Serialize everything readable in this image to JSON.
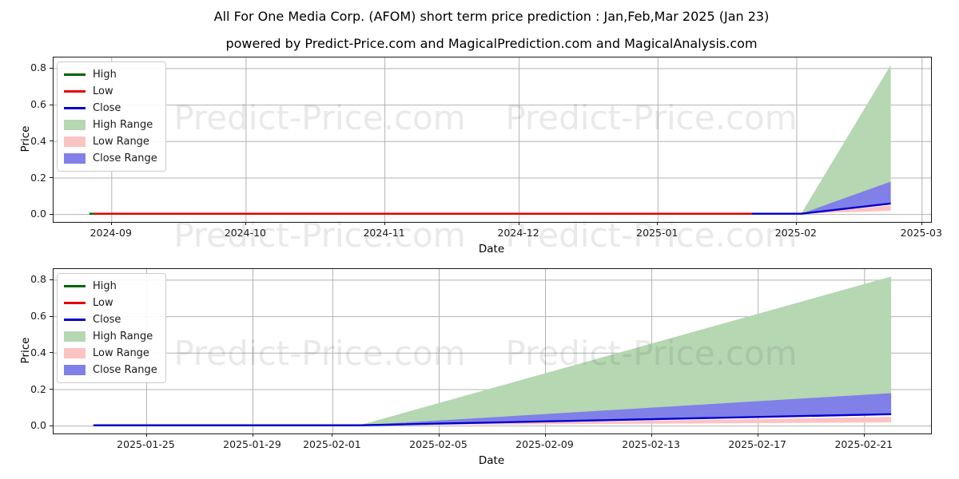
{
  "title": "All For One Media Corp. (AFOM) short term price prediction : Jan,Feb,Mar 2025 (Jan 23)",
  "subtitle": "powered by Predict-Price.com and MagicalPrediction.com and MagicalAnalysis.com",
  "watermark": {
    "text": "Predict-Price.com"
  },
  "colors": {
    "high_line": "#006400",
    "low_line": "#e60000",
    "close_line": "#0000cd",
    "high_fill": "#b5d7b2",
    "low_fill": "#fcc3c3",
    "close_fill": "#8080e8",
    "grid": "#b3b3b3",
    "spine": "#1a1a1a"
  },
  "charts": [
    {
      "ylabel": "Price",
      "xlabel": "Date",
      "yticks": [
        {
          "v": 0.0,
          "label": "0.0"
        },
        {
          "v": 0.2,
          "label": "0.2"
        },
        {
          "v": 0.4,
          "label": "0.4"
        },
        {
          "v": 0.6,
          "label": "0.6"
        },
        {
          "v": 0.8,
          "label": "0.8"
        }
      ],
      "xticks": [
        {
          "date": "2024-09-01",
          "label": "2024-09"
        },
        {
          "date": "2024-10-01",
          "label": "2024-10"
        },
        {
          "date": "2024-11-01",
          "label": "2024-11"
        },
        {
          "date": "2024-12-01",
          "label": "2024-12"
        },
        {
          "date": "2025-01-01",
          "label": "2025-01"
        },
        {
          "date": "2025-02-01",
          "label": "2025-02"
        },
        {
          "date": "2025-03-01",
          "label": "2025-03"
        }
      ],
      "legend": [
        {
          "swatch": "line",
          "color": "high_line",
          "label": "High"
        },
        {
          "swatch": "line",
          "color": "low_line",
          "label": "Low"
        },
        {
          "swatch": "line",
          "color": "close_line",
          "label": "Close"
        },
        {
          "swatch": "patch",
          "color": "high_fill",
          "label": "High Range"
        },
        {
          "swatch": "patch",
          "color": "low_fill",
          "label": "Low Range"
        },
        {
          "swatch": "patch",
          "color": "close_fill",
          "label": "Close Range"
        }
      ]
    },
    {
      "ylabel": "Price",
      "xlabel": "Date",
      "yticks": [
        {
          "v": 0.0,
          "label": "0.0"
        },
        {
          "v": 0.2,
          "label": "0.2"
        },
        {
          "v": 0.4,
          "label": "0.4"
        },
        {
          "v": 0.6,
          "label": "0.6"
        },
        {
          "v": 0.8,
          "label": "0.8"
        }
      ],
      "xticks": [
        {
          "date": "2025-01-25",
          "label": "2025-01-25"
        },
        {
          "date": "2025-01-29",
          "label": "2025-01-29"
        },
        {
          "date": "2025-02-01",
          "label": "2025-02-01"
        },
        {
          "date": "2025-02-05",
          "label": "2025-02-05"
        },
        {
          "date": "2025-02-09",
          "label": "2025-02-09"
        },
        {
          "date": "2025-02-13",
          "label": "2025-02-13"
        },
        {
          "date": "2025-02-17",
          "label": "2025-02-17"
        },
        {
          "date": "2025-02-21",
          "label": "2025-02-21"
        }
      ],
      "legend": [
        {
          "swatch": "line",
          "color": "high_line",
          "label": "High"
        },
        {
          "swatch": "line",
          "color": "low_line",
          "label": "Low"
        },
        {
          "swatch": "line",
          "color": "close_line",
          "label": "Close"
        },
        {
          "swatch": "patch",
          "color": "high_fill",
          "label": "High Range"
        },
        {
          "swatch": "patch",
          "color": "low_fill",
          "label": "Low Range"
        },
        {
          "swatch": "patch",
          "color": "close_fill",
          "label": "Close Range"
        }
      ]
    }
  ],
  "chart_data": [
    {
      "type": "line",
      "title": "AFOM price history and short-term prediction (monthly scale)",
      "xlabel": "Date",
      "ylabel": "Price",
      "xlim": [
        "2024-08-19",
        "2025-03-03"
      ],
      "ylim": [
        -0.041,
        0.861
      ],
      "grid": true,
      "legend_position": "upper left",
      "series": [
        {
          "name": "High",
          "kind": "line",
          "color": "high_line",
          "points": [
            [
              "2024-08-27",
              0.004
            ],
            [
              "2025-01-22",
              0.004
            ]
          ]
        },
        {
          "name": "Low",
          "kind": "line",
          "color": "low_line",
          "points": [
            [
              "2024-08-28",
              0.004
            ],
            [
              "2025-01-22",
              0.004
            ]
          ]
        },
        {
          "name": "Close",
          "kind": "line",
          "color": "close_line",
          "points": [
            [
              "2025-01-22",
              0.004
            ],
            [
              "2025-02-02",
              0.004
            ],
            [
              "2025-02-22",
              0.06
            ]
          ]
        },
        {
          "name": "High Range",
          "kind": "band",
          "color": "high_fill",
          "upper": [
            [
              "2025-02-02",
              0.004
            ],
            [
              "2025-02-22",
              0.82
            ]
          ],
          "lower": [
            [
              "2025-02-02",
              0.004
            ],
            [
              "2025-02-22",
              0.06
            ]
          ]
        },
        {
          "name": "Low Range",
          "kind": "band",
          "color": "low_fill",
          "upper": [
            [
              "2025-02-02",
              0.004
            ],
            [
              "2025-02-22",
              0.05
            ]
          ],
          "lower": [
            [
              "2025-02-02",
              0.004
            ],
            [
              "2025-02-22",
              0.02
            ]
          ]
        },
        {
          "name": "Close Range",
          "kind": "band",
          "color": "close_fill",
          "upper": [
            [
              "2025-02-02",
              0.004
            ],
            [
              "2025-02-22",
              0.18
            ]
          ],
          "lower": [
            [
              "2025-02-02",
              0.004
            ],
            [
              "2025-02-22",
              0.06
            ]
          ]
        }
      ]
    },
    {
      "type": "line",
      "title": "AFOM short-term prediction (daily scale)",
      "xlabel": "Date",
      "ylabel": "Price",
      "xlim": [
        "2025-01-21T12:00:00",
        "2025-02-23T12:00:00"
      ],
      "ylim": [
        -0.041,
        0.861
      ],
      "grid": true,
      "legend_position": "upper left",
      "series": [
        {
          "name": "High",
          "kind": "line",
          "color": "high_line",
          "points": [
            [
              "2025-01-23",
              0.004
            ],
            [
              "2025-02-02",
              0.004
            ]
          ]
        },
        {
          "name": "Low",
          "kind": "line",
          "color": "low_line",
          "points": [
            [
              "2025-01-23",
              0.004
            ],
            [
              "2025-02-02",
              0.004
            ]
          ]
        },
        {
          "name": "Close",
          "kind": "line",
          "color": "close_line",
          "points": [
            [
              "2025-01-23",
              0.004
            ],
            [
              "2025-02-02",
              0.004
            ],
            [
              "2025-02-22",
              0.065
            ]
          ]
        },
        {
          "name": "High Range",
          "kind": "band",
          "color": "high_fill",
          "upper": [
            [
              "2025-02-02",
              0.004
            ],
            [
              "2025-02-22",
              0.82
            ]
          ],
          "lower": [
            [
              "2025-02-02",
              0.004
            ],
            [
              "2025-02-22",
              0.065
            ]
          ]
        },
        {
          "name": "Low Range",
          "kind": "band",
          "color": "low_fill",
          "upper": [
            [
              "2025-02-02",
              0.004
            ],
            [
              "2025-02-22",
              0.05
            ]
          ],
          "lower": [
            [
              "2025-02-02",
              0.004
            ],
            [
              "2025-02-22",
              0.02
            ]
          ]
        },
        {
          "name": "Close Range",
          "kind": "band",
          "color": "close_fill",
          "upper": [
            [
              "2025-02-02",
              0.004
            ],
            [
              "2025-02-22",
              0.18
            ]
          ],
          "lower": [
            [
              "2025-02-02",
              0.004
            ],
            [
              "2025-02-22",
              0.065
            ]
          ]
        }
      ]
    }
  ]
}
